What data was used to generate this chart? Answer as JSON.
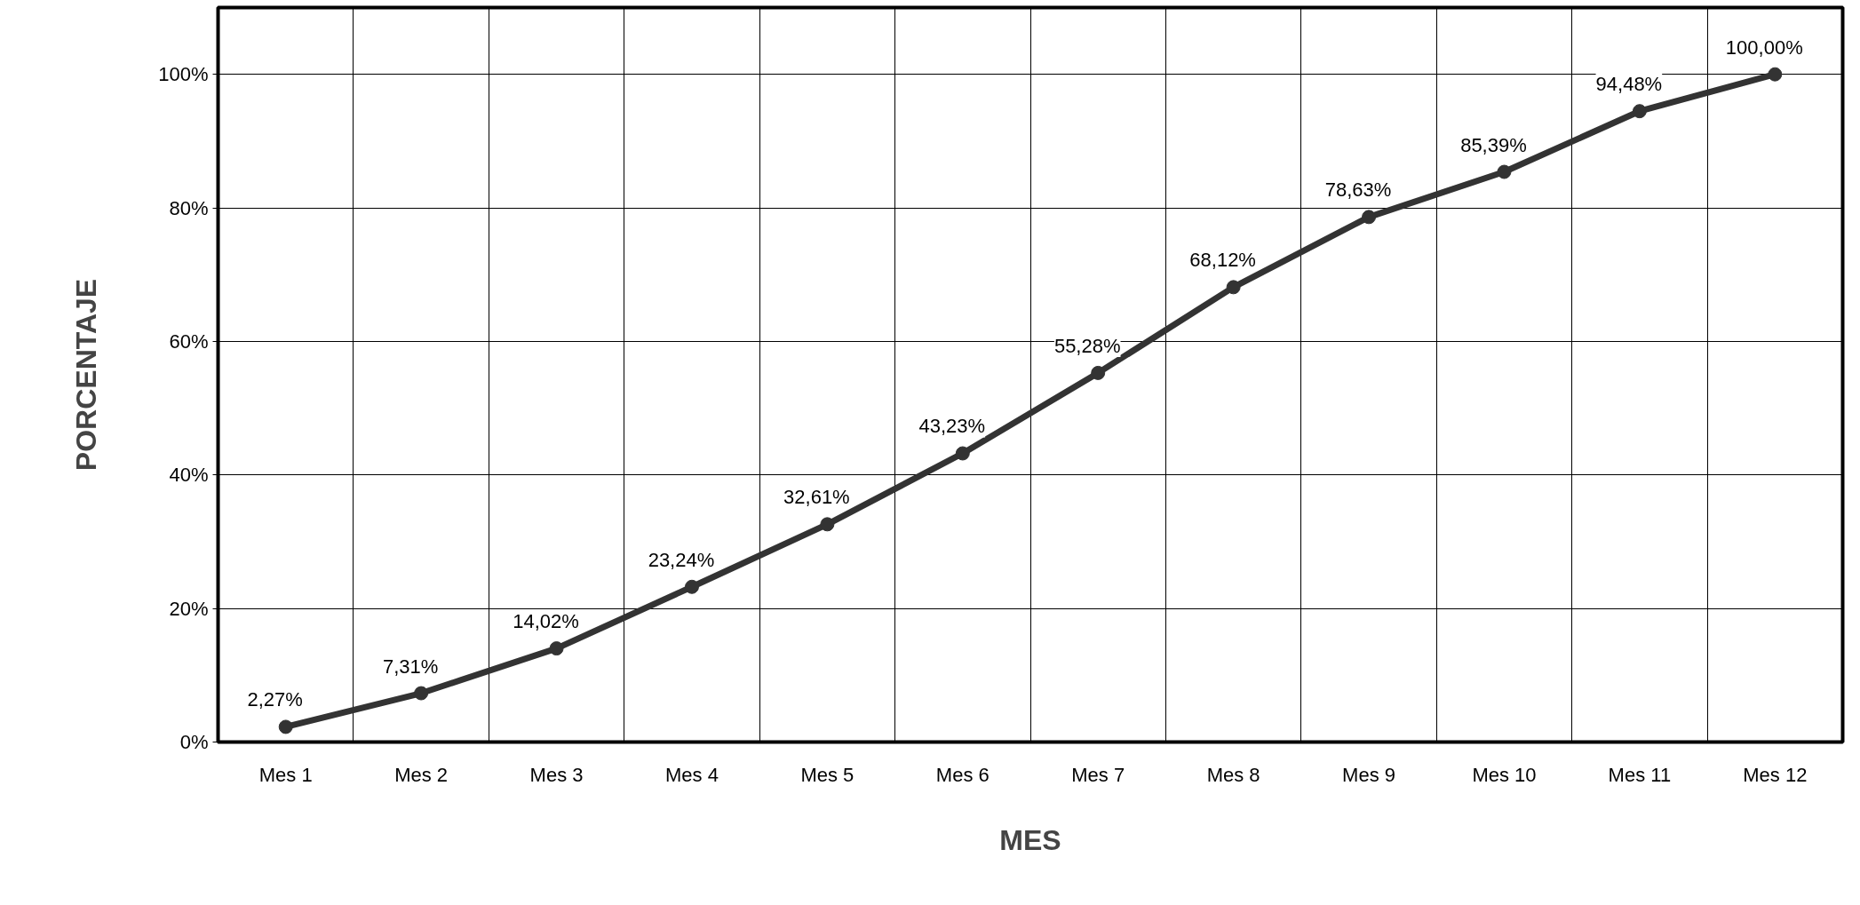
{
  "chart_data": {
    "type": "line",
    "xlabel": "MES",
    "ylabel": "PORCENTAJE",
    "categories": [
      "Mes 1",
      "Mes 2",
      "Mes 3",
      "Mes 4",
      "Mes 5",
      "Mes 6",
      "Mes 7",
      "Mes 8",
      "Mes 9",
      "Mes 10",
      "Mes 11",
      "Mes 12"
    ],
    "series": [
      {
        "color": "#333333",
        "values": [
          2.27,
          7.31,
          14.02,
          23.24,
          32.61,
          43.23,
          55.28,
          68.12,
          78.63,
          85.39,
          94.48,
          100.0
        ],
        "value_labels": [
          "2,27%",
          "7,31%",
          "14,02%",
          "23,24%",
          "32,61%",
          "43,23%",
          "55,28%",
          "68,12%",
          "78,63%",
          "85,39%",
          "94,48%",
          "100,00%"
        ]
      }
    ],
    "ylim": [
      0,
      110
    ],
    "yticks": [
      {
        "value": 0,
        "label": "0%"
      },
      {
        "value": 20,
        "label": "20%"
      },
      {
        "value": 40,
        "label": "40%"
      },
      {
        "value": 60,
        "label": "60%"
      },
      {
        "value": 80,
        "label": "80%"
      },
      {
        "value": 100,
        "label": "100%"
      }
    ],
    "grid": true,
    "marker": "circle",
    "line_style": "solid"
  }
}
